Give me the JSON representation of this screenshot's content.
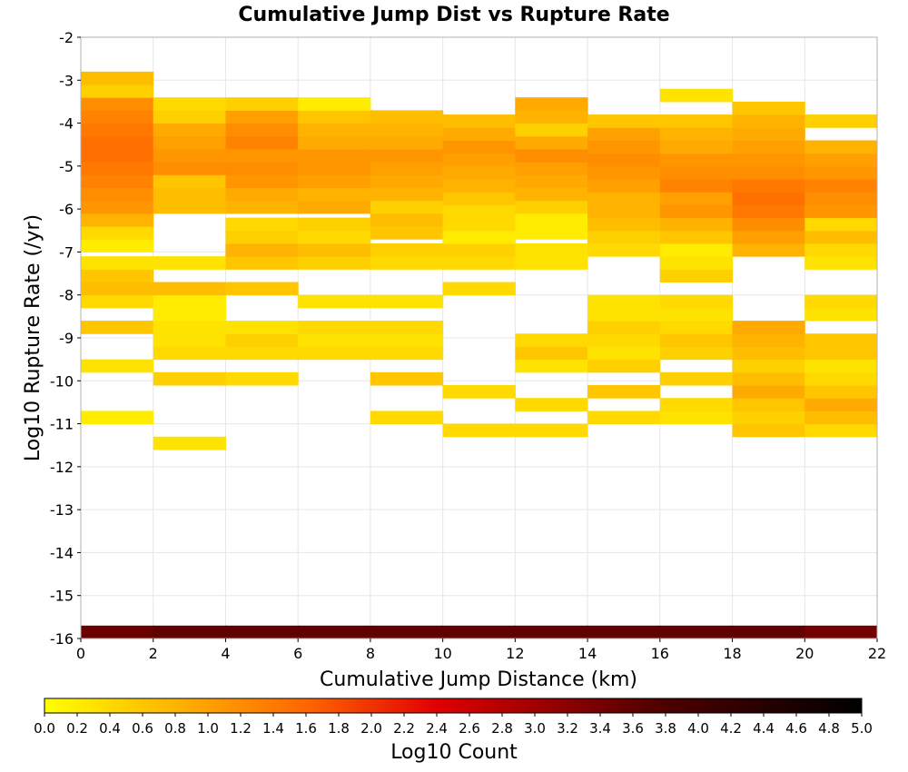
{
  "chart_data": {
    "type": "heatmap",
    "title": "Cumulative Jump Dist vs Rupture Rate",
    "xlabel": "Cumulative Jump Distance (km)",
    "ylabel": "Log10 Rupture Rate (/yr)",
    "xlim": [
      0,
      22
    ],
    "ylim": [
      -16,
      -2
    ],
    "x_ticks": [
      "0",
      "2",
      "4",
      "6",
      "8",
      "10",
      "12",
      "14",
      "16",
      "18",
      "20",
      "22"
    ],
    "y_ticks": [
      "-2",
      "-3",
      "-4",
      "-5",
      "-6",
      "-7",
      "-8",
      "-9",
      "-10",
      "-11",
      "-12",
      "-13",
      "-14",
      "-15",
      "-16"
    ],
    "grid": true,
    "x_bin_width": 2,
    "y_bin_height": 0.3,
    "colorbar": {
      "label": "Log10 Count",
      "range": [
        0,
        5
      ],
      "placement": "bottom",
      "ticks": [
        "0.0",
        "0.2",
        "0.4",
        "0.6",
        "0.8",
        "1.0",
        "1.2",
        "1.4",
        "1.6",
        "1.8",
        "2.0",
        "2.2",
        "2.4",
        "2.6",
        "2.8",
        "3.0",
        "3.2",
        "3.4",
        "3.6",
        "3.8",
        "4.0",
        "4.2",
        "4.4",
        "4.6",
        "4.8",
        "5.0"
      ],
      "colors": [
        "#ffff00",
        "#ffa000",
        "#ff6600",
        "#e00000",
        "#500000",
        "#000000"
      ]
    },
    "columns": [
      {
        "x0": 0,
        "cells": [
          [
            -16.0,
            3.5
          ],
          [
            -11.0,
            0.2
          ],
          [
            -9.8,
            0.3
          ],
          [
            -8.9,
            0.6
          ],
          [
            -8.3,
            0.4
          ],
          [
            -8.0,
            0.7
          ],
          [
            -7.7,
            0.6
          ],
          [
            -7.4,
            0.3
          ],
          [
            -7.0,
            0.2
          ],
          [
            -6.7,
            0.4
          ],
          [
            -6.4,
            0.8
          ],
          [
            -6.1,
            1.1
          ],
          [
            -5.8,
            1.2
          ],
          [
            -5.5,
            1.3
          ],
          [
            -5.2,
            1.4
          ],
          [
            -4.9,
            1.5
          ],
          [
            -4.6,
            1.5
          ],
          [
            -4.3,
            1.4
          ],
          [
            -4.0,
            1.3
          ],
          [
            -3.7,
            1.2
          ],
          [
            -3.4,
            0.5
          ],
          [
            -3.1,
            0.7
          ]
        ]
      },
      {
        "x0": 2,
        "cells": [
          [
            -16.0,
            3.6
          ],
          [
            -11.6,
            0.3
          ],
          [
            -10.1,
            0.5
          ],
          [
            -9.5,
            0.4
          ],
          [
            -9.2,
            0.3
          ],
          [
            -8.9,
            0.3
          ],
          [
            -8.6,
            0.2
          ],
          [
            -8.3,
            0.2
          ],
          [
            -8.0,
            0.7
          ],
          [
            -7.4,
            0.3
          ],
          [
            -6.1,
            0.7
          ],
          [
            -5.8,
            0.7
          ],
          [
            -5.5,
            0.6
          ],
          [
            -5.2,
            1.2
          ],
          [
            -4.9,
            1.1
          ],
          [
            -4.6,
            1.0
          ],
          [
            -4.3,
            0.9
          ],
          [
            -4.0,
            0.5
          ],
          [
            -3.7,
            0.4
          ]
        ]
      },
      {
        "x0": 4,
        "cells": [
          [
            -16.0,
            3.6
          ],
          [
            -10.1,
            0.4
          ],
          [
            -9.5,
            0.4
          ],
          [
            -9.2,
            0.5
          ],
          [
            -8.9,
            0.3
          ],
          [
            -8.0,
            0.6
          ],
          [
            -7.4,
            0.6
          ],
          [
            -7.1,
            0.8
          ],
          [
            -6.8,
            0.5
          ],
          [
            -6.5,
            0.4
          ],
          [
            -6.1,
            0.8
          ],
          [
            -5.8,
            0.9
          ],
          [
            -5.5,
            1.1
          ],
          [
            -5.2,
            1.2
          ],
          [
            -4.9,
            1.1
          ],
          [
            -4.6,
            1.3
          ],
          [
            -4.3,
            1.2
          ],
          [
            -4.0,
            1.0
          ],
          [
            -3.7,
            0.5
          ]
        ]
      },
      {
        "x0": 6,
        "cells": [
          [
            -16.0,
            3.6
          ],
          [
            -9.5,
            0.4
          ],
          [
            -9.2,
            0.3
          ],
          [
            -8.9,
            0.4
          ],
          [
            -8.3,
            0.3
          ],
          [
            -7.4,
            0.5
          ],
          [
            -7.1,
            0.7
          ],
          [
            -6.8,
            0.4
          ],
          [
            -6.5,
            0.5
          ],
          [
            -6.1,
            0.9
          ],
          [
            -5.8,
            0.8
          ],
          [
            -5.5,
            1.0
          ],
          [
            -5.2,
            1.1
          ],
          [
            -4.9,
            1.1
          ],
          [
            -4.6,
            0.9
          ],
          [
            -4.3,
            0.8
          ],
          [
            -4.0,
            0.6
          ],
          [
            -3.7,
            0.2
          ]
        ]
      },
      {
        "x0": 8,
        "cells": [
          [
            -16.0,
            3.6
          ],
          [
            -11.0,
            0.4
          ],
          [
            -10.1,
            0.6
          ],
          [
            -9.5,
            0.4
          ],
          [
            -9.2,
            0.3
          ],
          [
            -8.9,
            0.4
          ],
          [
            -8.3,
            0.3
          ],
          [
            -7.4,
            0.4
          ],
          [
            -7.1,
            0.5
          ],
          [
            -6.7,
            0.6
          ],
          [
            -6.4,
            0.7
          ],
          [
            -6.1,
            0.5
          ],
          [
            -5.8,
            0.8
          ],
          [
            -5.5,
            0.9
          ],
          [
            -5.2,
            1.0
          ],
          [
            -4.9,
            1.1
          ],
          [
            -4.6,
            0.9
          ],
          [
            -4.3,
            0.8
          ],
          [
            -4.0,
            0.7
          ]
        ]
      },
      {
        "x0": 10,
        "cells": [
          [
            -16.0,
            3.6
          ],
          [
            -11.3,
            0.4
          ],
          [
            -10.4,
            0.4
          ],
          [
            -8.0,
            0.4
          ],
          [
            -7.4,
            0.4
          ],
          [
            -7.1,
            0.5
          ],
          [
            -6.8,
            0.2
          ],
          [
            -6.5,
            0.4
          ],
          [
            -6.2,
            0.4
          ],
          [
            -5.9,
            0.6
          ],
          [
            -5.6,
            0.8
          ],
          [
            -5.3,
            0.9
          ],
          [
            -5.0,
            1.0
          ],
          [
            -4.7,
            1.1
          ],
          [
            -4.4,
            0.9
          ],
          [
            -4.1,
            0.7
          ]
        ]
      },
      {
        "x0": 12,
        "cells": [
          [
            -16.0,
            3.6
          ],
          [
            -11.3,
            0.4
          ],
          [
            -10.7,
            0.4
          ],
          [
            -9.8,
            0.3
          ],
          [
            -9.5,
            0.6
          ],
          [
            -9.2,
            0.4
          ],
          [
            -7.4,
            0.3
          ],
          [
            -7.1,
            0.3
          ],
          [
            -6.7,
            0.2
          ],
          [
            -6.4,
            0.2
          ],
          [
            -6.1,
            0.5
          ],
          [
            -5.8,
            0.8
          ],
          [
            -5.5,
            0.9
          ],
          [
            -5.2,
            1.0
          ],
          [
            -4.9,
            1.2
          ],
          [
            -4.6,
            0.9
          ],
          [
            -4.3,
            0.5
          ],
          [
            -4.0,
            0.8
          ],
          [
            -3.7,
            0.9
          ]
        ]
      },
      {
        "x0": 14,
        "cells": [
          [
            -16.0,
            3.6
          ],
          [
            -11.0,
            0.4
          ],
          [
            -10.4,
            0.6
          ],
          [
            -9.8,
            0.5
          ],
          [
            -9.5,
            0.3
          ],
          [
            -9.2,
            0.4
          ],
          [
            -8.9,
            0.5
          ],
          [
            -8.6,
            0.3
          ],
          [
            -8.3,
            0.3
          ],
          [
            -7.1,
            0.4
          ],
          [
            -6.8,
            0.5
          ],
          [
            -6.5,
            0.7
          ],
          [
            -6.2,
            0.8
          ],
          [
            -5.9,
            0.8
          ],
          [
            -5.6,
            1.0
          ],
          [
            -5.3,
            1.1
          ],
          [
            -5.0,
            1.2
          ],
          [
            -4.7,
            1.1
          ],
          [
            -4.4,
            1.0
          ],
          [
            -4.1,
            0.6
          ]
        ]
      },
      {
        "x0": 16,
        "cells": [
          [
            -16.0,
            3.6
          ],
          [
            -11.0,
            0.3
          ],
          [
            -10.7,
            0.4
          ],
          [
            -10.1,
            0.5
          ],
          [
            -9.5,
            0.5
          ],
          [
            -9.2,
            0.6
          ],
          [
            -8.9,
            0.4
          ],
          [
            -8.6,
            0.3
          ],
          [
            -8.3,
            0.4
          ],
          [
            -7.7,
            0.5
          ],
          [
            -7.4,
            0.3
          ],
          [
            -7.1,
            0.2
          ],
          [
            -6.8,
            0.6
          ],
          [
            -6.5,
            0.8
          ],
          [
            -6.2,
            1.1
          ],
          [
            -5.9,
            1.0
          ],
          [
            -5.6,
            1.3
          ],
          [
            -5.3,
            1.2
          ],
          [
            -5.0,
            1.1
          ],
          [
            -4.7,
            0.9
          ],
          [
            -4.4,
            0.8
          ],
          [
            -4.1,
            0.6
          ],
          [
            -3.5,
            0.3
          ]
        ]
      },
      {
        "x0": 18,
        "cells": [
          [
            -16.0,
            3.6
          ],
          [
            -11.3,
            0.6
          ],
          [
            -11.0,
            0.5
          ],
          [
            -10.7,
            0.6
          ],
          [
            -10.4,
            0.9
          ],
          [
            -10.1,
            0.7
          ],
          [
            -9.8,
            0.5
          ],
          [
            -9.5,
            0.7
          ],
          [
            -9.2,
            0.8
          ],
          [
            -8.9,
            0.9
          ],
          [
            -7.1,
            0.8
          ],
          [
            -6.8,
            1.0
          ],
          [
            -6.5,
            1.2
          ],
          [
            -6.2,
            1.4
          ],
          [
            -5.9,
            1.5
          ],
          [
            -5.6,
            1.4
          ],
          [
            -5.3,
            1.2
          ],
          [
            -5.0,
            1.1
          ],
          [
            -4.7,
            1.0
          ],
          [
            -4.4,
            0.9
          ],
          [
            -4.1,
            0.8
          ],
          [
            -3.8,
            0.6
          ]
        ]
      },
      {
        "x0": 20,
        "cells": [
          [
            -16.0,
            3.4
          ],
          [
            -11.3,
            0.4
          ],
          [
            -11.0,
            0.7
          ],
          [
            -10.7,
            0.9
          ],
          [
            -10.4,
            0.6
          ],
          [
            -10.1,
            0.4
          ],
          [
            -9.8,
            0.3
          ],
          [
            -9.5,
            0.6
          ],
          [
            -9.2,
            0.6
          ],
          [
            -8.6,
            0.3
          ],
          [
            -8.3,
            0.4
          ],
          [
            -7.4,
            0.3
          ],
          [
            -7.1,
            0.4
          ],
          [
            -6.8,
            0.7
          ],
          [
            -6.5,
            0.4
          ],
          [
            -6.2,
            1.1
          ],
          [
            -5.9,
            1.2
          ],
          [
            -5.6,
            1.3
          ],
          [
            -5.3,
            1.1
          ],
          [
            -5.0,
            1.0
          ],
          [
            -4.7,
            0.8
          ],
          [
            -4.1,
            0.5
          ]
        ]
      }
    ]
  }
}
